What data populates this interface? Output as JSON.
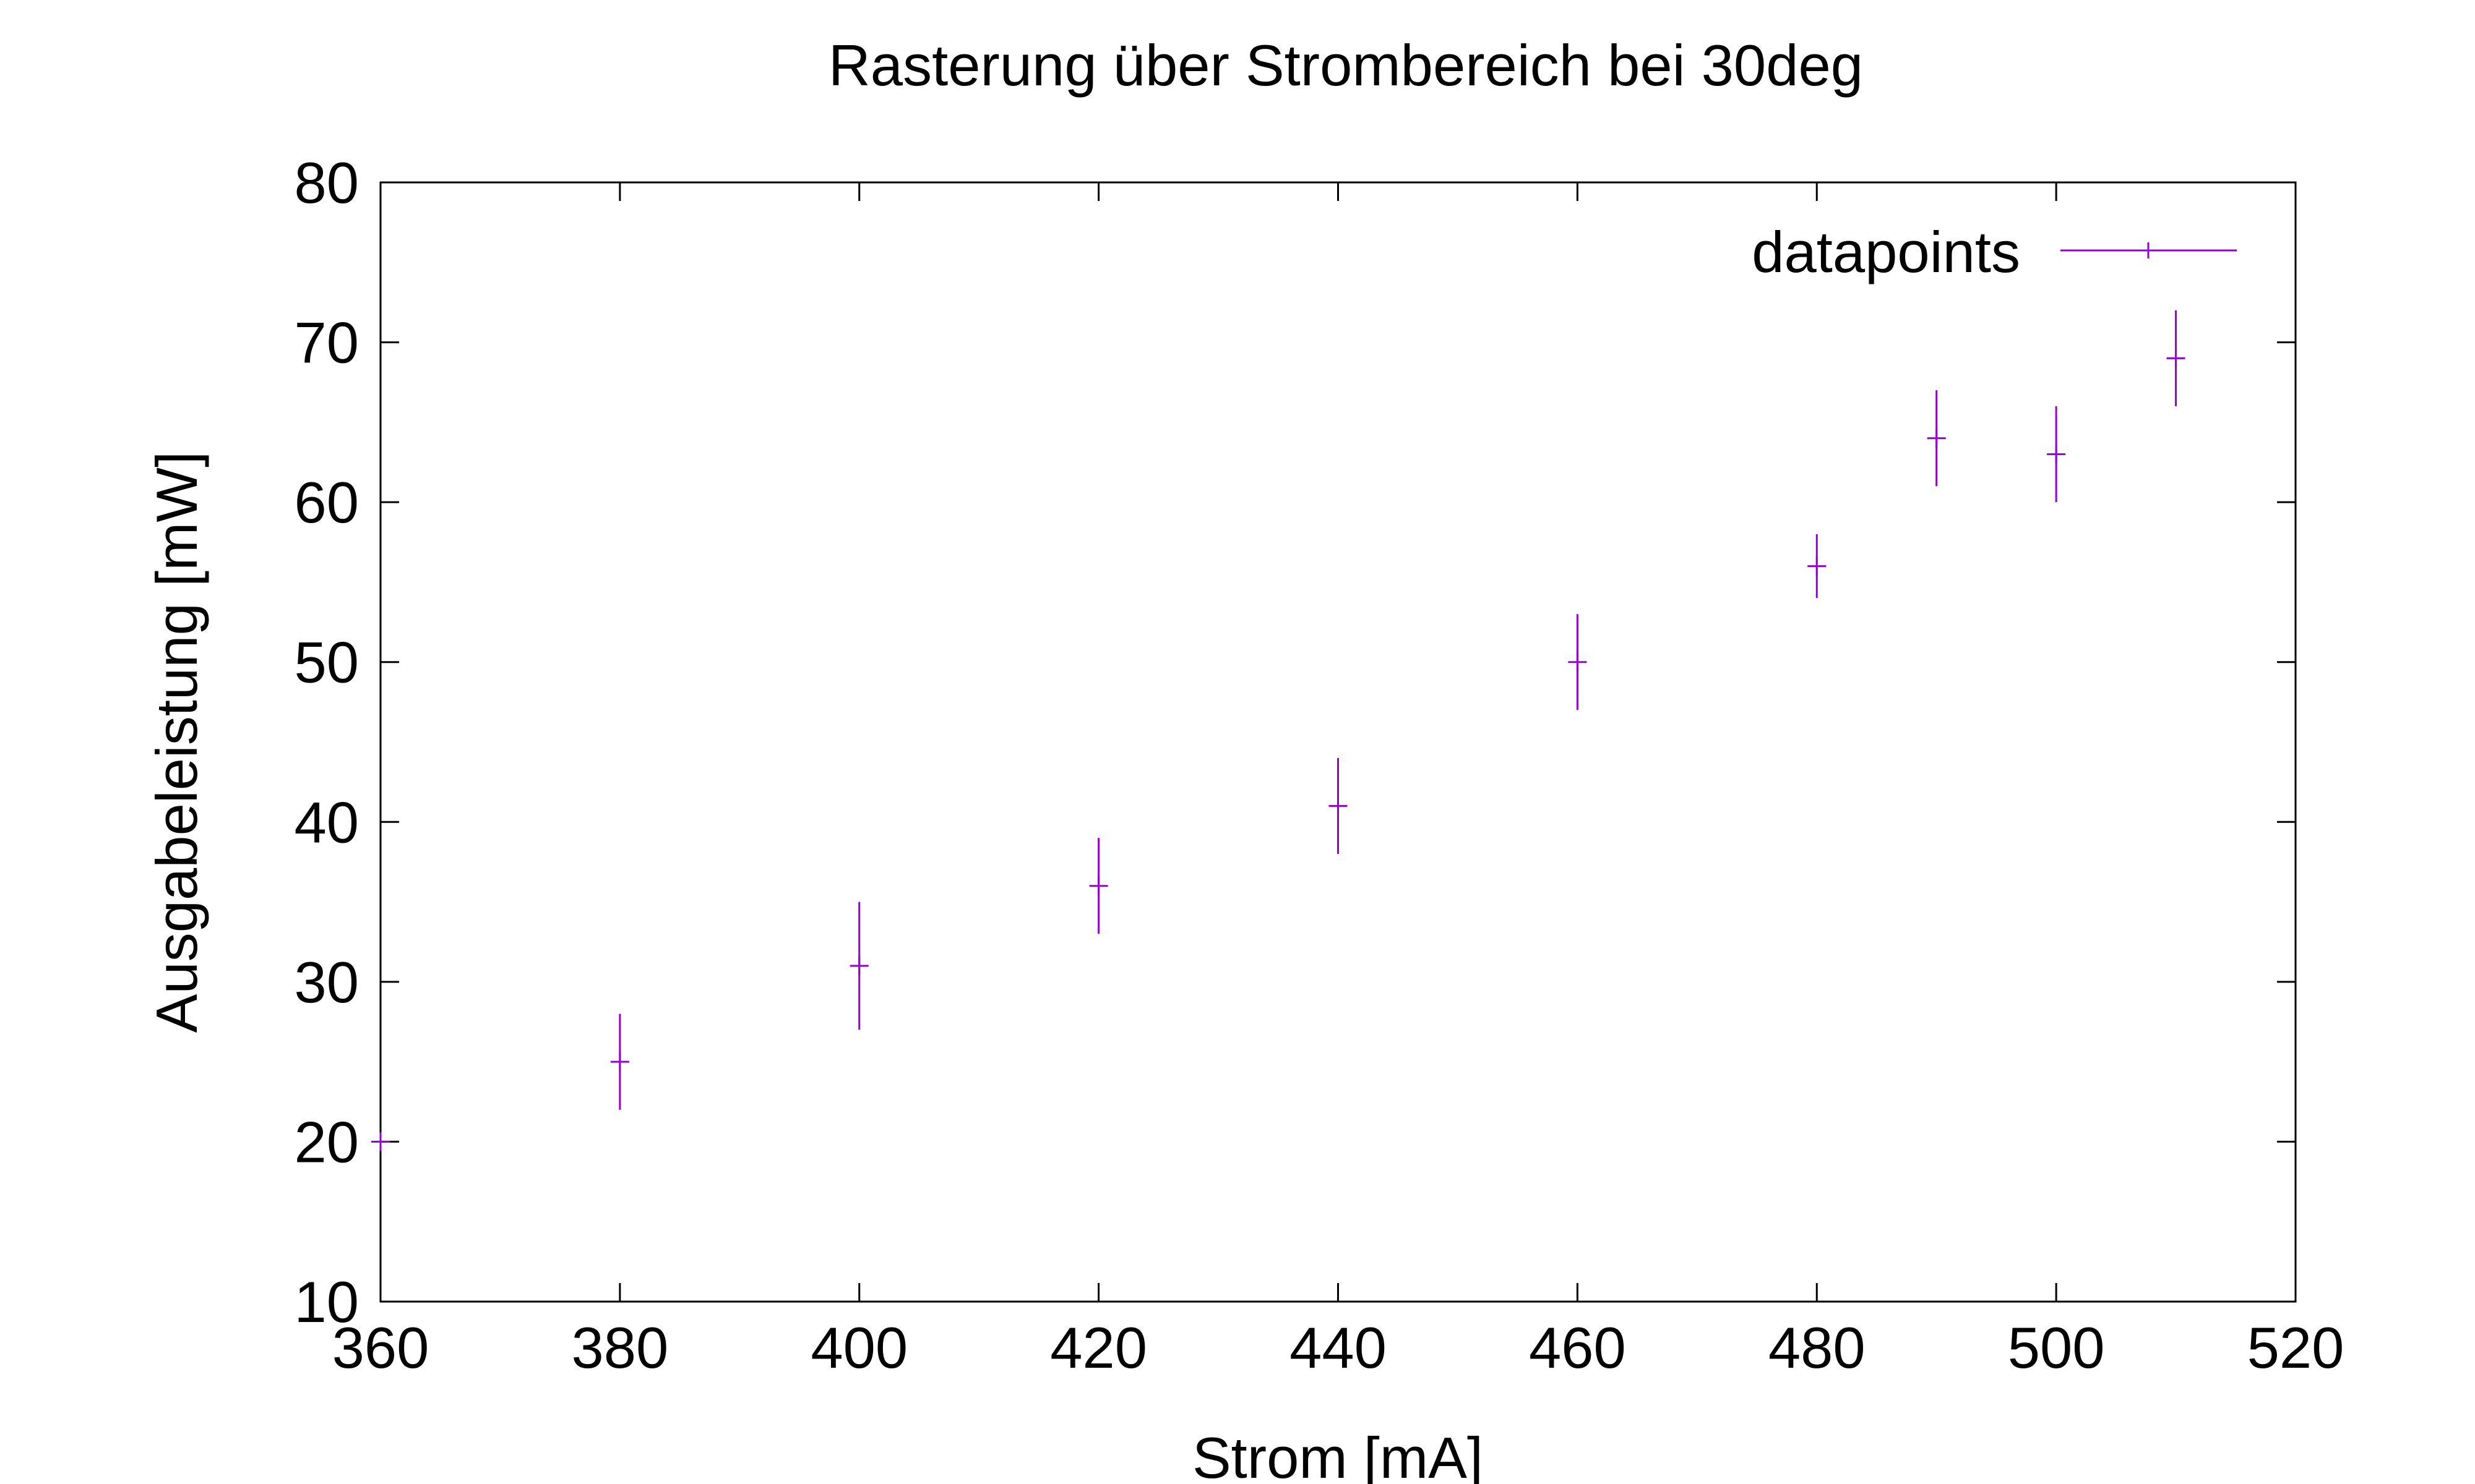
{
  "chart_data": {
    "type": "scatter",
    "title": "Rasterung über Strombereich bei 30deg",
    "xlabel": "Strom [mA]",
    "ylabel": "Ausgabeleistung [mW]",
    "xlim": [
      360,
      520
    ],
    "ylim": [
      10,
      80
    ],
    "xticks": [
      "360",
      "380",
      "400",
      "420",
      "440",
      "460",
      "480",
      "500",
      "520"
    ],
    "yticks": [
      "10",
      "20",
      "30",
      "40",
      "50",
      "60",
      "70",
      "80"
    ],
    "grid": false,
    "legend_position": "top-right",
    "series": [
      {
        "name": "datapoints",
        "color": "#9400D3",
        "marker": "plus",
        "error_bars": "y",
        "points": [
          {
            "x": 360,
            "y": 20,
            "yerr": 0
          },
          {
            "x": 380,
            "y": 25,
            "yerr": 3
          },
          {
            "x": 400,
            "y": 31,
            "yerr": 4
          },
          {
            "x": 420,
            "y": 36,
            "yerr": 3
          },
          {
            "x": 440,
            "y": 41,
            "yerr": 3
          },
          {
            "x": 460,
            "y": 50,
            "yerr": 3
          },
          {
            "x": 480,
            "y": 56,
            "yerr": 2
          },
          {
            "x": 490,
            "y": 64,
            "yerr": 3
          },
          {
            "x": 500,
            "y": 63,
            "yerr": 3
          },
          {
            "x": 510,
            "y": 69,
            "yerr": 3
          }
        ]
      }
    ]
  }
}
